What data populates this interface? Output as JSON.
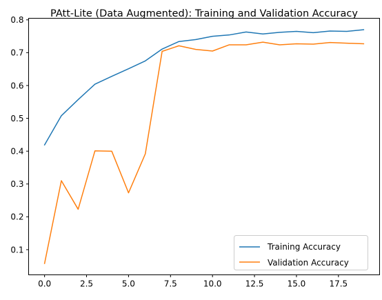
{
  "chart_data": {
    "type": "line",
    "title": "PAtt-Lite (Data Augmented): Training and Validation Accuracy",
    "xlabel": "",
    "ylabel": "",
    "xlim": [
      -0.95,
      19.95
    ],
    "ylim": [
      0.0233,
      0.8048
    ],
    "xticks": [
      0,
      2.5,
      5,
      7.5,
      10,
      12.5,
      15,
      17.5
    ],
    "xtick_labels": [
      "0.0",
      "2.5",
      "5.0",
      "7.5",
      "10.0",
      "12.5",
      "15.0",
      "17.5"
    ],
    "yticks": [
      0.1,
      0.2,
      0.3,
      0.4,
      0.5,
      0.6,
      0.7,
      0.8
    ],
    "ytick_labels": [
      "0.1",
      "0.2",
      "0.3",
      "0.4",
      "0.5",
      "0.6",
      "0.7",
      "0.8"
    ],
    "grid": false,
    "legend_position": "lower-right",
    "x": [
      0,
      1,
      2,
      3,
      4,
      5,
      6,
      7,
      8,
      9,
      10,
      11,
      12,
      13,
      14,
      15,
      16,
      17,
      18,
      19
    ],
    "series": [
      {
        "name": "Training Accuracy",
        "color": "#1f77b4",
        "values": [
          0.419,
          0.508,
          0.557,
          0.604,
          0.628,
          0.651,
          0.675,
          0.711,
          0.734,
          0.74,
          0.75,
          0.754,
          0.763,
          0.757,
          0.762,
          0.765,
          0.761,
          0.766,
          0.765,
          0.77
        ]
      },
      {
        "name": "Validation Accuracy",
        "color": "#ff7f0e",
        "values": [
          0.058,
          0.31,
          0.223,
          0.401,
          0.4,
          0.273,
          0.392,
          0.704,
          0.721,
          0.71,
          0.705,
          0.724,
          0.724,
          0.732,
          0.724,
          0.727,
          0.726,
          0.731,
          0.729,
          0.727
        ]
      }
    ]
  }
}
